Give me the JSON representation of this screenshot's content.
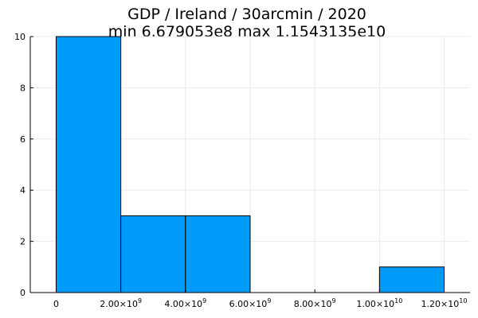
{
  "chart_data": {
    "type": "bar",
    "title": "GDP / Ireland / 30arcmin / 2020",
    "subtitle": "min 6.679053e8  max 1.1543135e10",
    "xlabel": "",
    "ylabel": "",
    "xlim": [
      -800000000,
      12800000000
    ],
    "ylim": [
      0,
      10
    ],
    "grid": true,
    "legend": "none",
    "bar_color": "#009af9",
    "bins": [
      {
        "x0": 0,
        "x1": 2000000000,
        "count": 10
      },
      {
        "x0": 2000000000,
        "x1": 4000000000,
        "count": 3
      },
      {
        "x0": 4000000000,
        "x1": 6000000000,
        "count": 3
      },
      {
        "x0": 6000000000,
        "x1": 8000000000,
        "count": 0
      },
      {
        "x0": 8000000000,
        "x1": 10000000000,
        "count": 0
      },
      {
        "x0": 10000000000,
        "x1": 12000000000,
        "count": 1
      }
    ],
    "x_ticks": [
      {
        "value": 0,
        "mant": "0",
        "exp": ""
      },
      {
        "value": 2000000000,
        "mant": "2.00×10",
        "exp": "9"
      },
      {
        "value": 4000000000,
        "mant": "4.00×10",
        "exp": "9"
      },
      {
        "value": 6000000000,
        "mant": "6.00×10",
        "exp": "9"
      },
      {
        "value": 8000000000,
        "mant": "8.00×10",
        "exp": "9"
      },
      {
        "value": 10000000000,
        "mant": "1.00×10",
        "exp": "10"
      },
      {
        "value": 12000000000,
        "mant": "1.20×10",
        "exp": "10"
      }
    ],
    "y_ticks": [
      {
        "value": 0,
        "label": "0"
      },
      {
        "value": 2,
        "label": "2"
      },
      {
        "value": 4,
        "label": "4"
      },
      {
        "value": 6,
        "label": "6"
      },
      {
        "value": 8,
        "label": "8"
      },
      {
        "value": 10,
        "label": "10"
      }
    ]
  }
}
